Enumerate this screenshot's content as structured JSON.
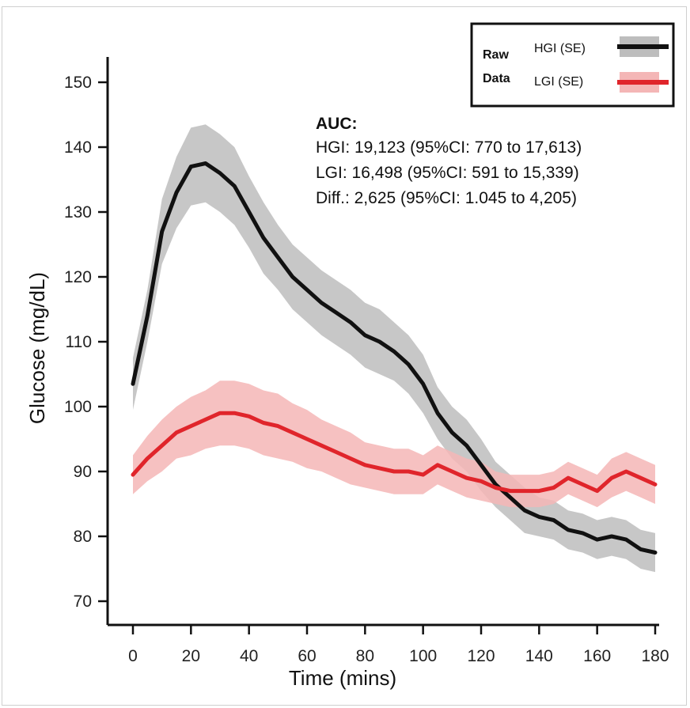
{
  "chart_data": {
    "type": "line",
    "xlabel": "Time (mins)",
    "ylabel": "Glucose (mg/dL)",
    "xlim": [
      -5,
      185
    ],
    "ylim": [
      66,
      154
    ],
    "x_ticks": [
      0,
      20,
      40,
      60,
      80,
      100,
      120,
      140,
      160,
      180
    ],
    "y_ticks": [
      70,
      80,
      90,
      100,
      110,
      120,
      130,
      140,
      150
    ],
    "legend": {
      "placement": "top-right",
      "header": [
        "Raw",
        "Data"
      ],
      "entries": [
        "HGI (SE)",
        "LGI (SE)"
      ]
    },
    "annotation": {
      "title": "AUC:",
      "lines": [
        "HGI: 19,123 (95%CI: 770 to 17,613)",
        "LGI: 16,498 (95%CI: 591 to 15,339)",
        "Diff.: 2,625 (95%CI: 1.045 to 4,205)"
      ]
    },
    "series": [
      {
        "name": "HGI (SE)",
        "color": "#111111",
        "band_color": "#bdbdbd",
        "x": [
          0,
          5,
          10,
          15,
          20,
          25,
          30,
          35,
          40,
          45,
          50,
          55,
          60,
          65,
          70,
          75,
          80,
          85,
          90,
          95,
          100,
          105,
          110,
          115,
          120,
          125,
          130,
          135,
          140,
          145,
          150,
          155,
          160,
          165,
          170,
          175,
          180
        ],
        "y": [
          103.5,
          114,
          127,
          133,
          137,
          137.5,
          136,
          134,
          130,
          126,
          123,
          120,
          118,
          116,
          114.5,
          113,
          111,
          110,
          108.5,
          106.5,
          103.5,
          99,
          96,
          94,
          91,
          88,
          86,
          84,
          83,
          82.5,
          81,
          80.5,
          79.5,
          80,
          79.5,
          78,
          77.5
        ],
        "se": [
          4,
          4,
          5,
          5.5,
          6,
          6,
          6,
          6,
          5.5,
          5.5,
          5,
          5,
          5,
          5,
          5,
          5,
          5,
          5,
          4.5,
          4.5,
          4.5,
          4,
          4,
          4,
          4,
          3.5,
          3.5,
          3.5,
          3,
          3,
          3,
          3,
          3,
          3,
          3,
          3,
          3
        ]
      },
      {
        "name": "LGI (SE)",
        "color": "#e0252b",
        "band_color": "#f4b6b6",
        "x": [
          0,
          5,
          10,
          15,
          20,
          25,
          30,
          35,
          40,
          45,
          50,
          55,
          60,
          65,
          70,
          75,
          80,
          85,
          90,
          95,
          100,
          105,
          110,
          115,
          120,
          125,
          130,
          135,
          140,
          145,
          150,
          155,
          160,
          165,
          170,
          175,
          180
        ],
        "y": [
          89.5,
          92,
          94,
          96,
          97,
          98,
          99,
          99,
          98.5,
          97.5,
          97,
          96,
          95,
          94,
          93,
          92,
          91,
          90.5,
          90,
          90,
          89.5,
          91,
          90,
          89,
          88.5,
          87.5,
          87,
          87,
          87,
          87.5,
          89,
          88,
          87,
          89,
          90,
          89,
          88
        ],
        "se": [
          3,
          3.5,
          4,
          4,
          4.5,
          4.5,
          5,
          5,
          5,
          5,
          5,
          4.5,
          4.5,
          4,
          4,
          4,
          3.5,
          3.5,
          3.5,
          3.5,
          3,
          3,
          3,
          3,
          3,
          2.5,
          2.5,
          2.5,
          2.5,
          2.5,
          2.5,
          2.5,
          2.5,
          3,
          3,
          3,
          3
        ]
      }
    ]
  }
}
